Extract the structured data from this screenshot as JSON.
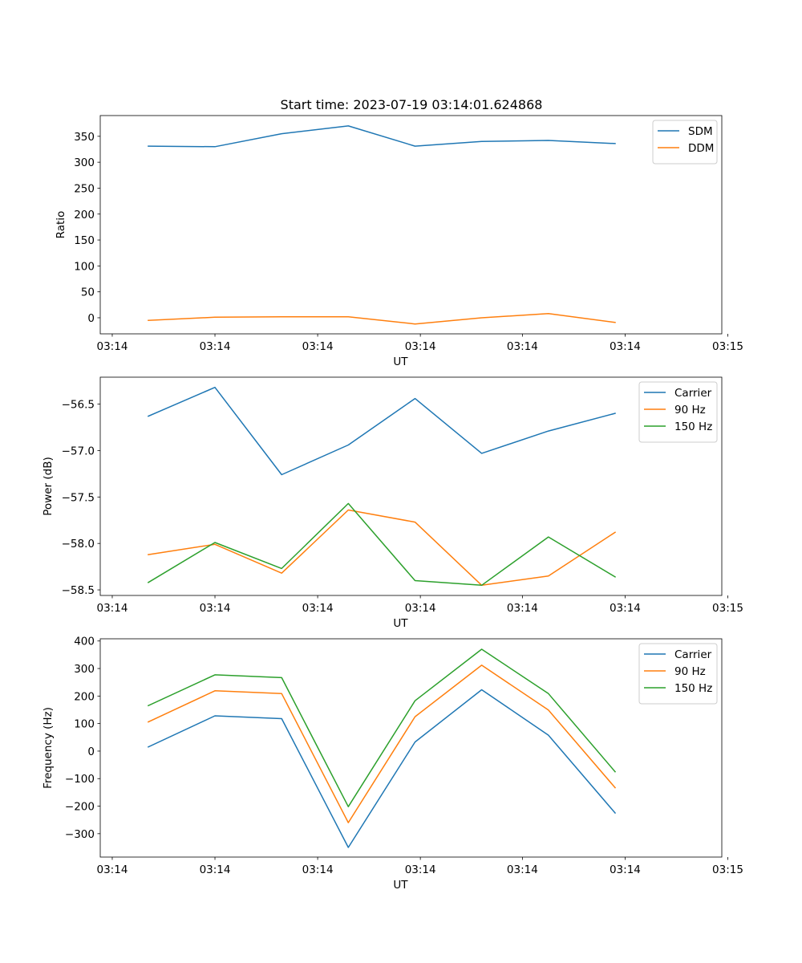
{
  "figure_title": "Start time: 2023-07-19 03:14:01.624868",
  "chart_data": [
    {
      "type": "line",
      "ylabel": "Ratio",
      "xlabel": "UT",
      "x": [
        1,
        2,
        3,
        4,
        5,
        6,
        7,
        8
      ],
      "xlim": [
        0.28,
        9.6
      ],
      "x_ticks": [
        0.46,
        2.0,
        3.54,
        5.08,
        6.61,
        8.15,
        9.69
      ],
      "x_tick_labels": [
        "03:14",
        "03:14",
        "03:14",
        "03:14",
        "03:14",
        "03:14",
        "03:15"
      ],
      "ylim": [
        -31,
        390
      ],
      "y_ticks": [
        0,
        50,
        100,
        150,
        200,
        250,
        300,
        350
      ],
      "y_tick_labels": [
        "0",
        "50",
        "100",
        "150",
        "200",
        "250",
        "300",
        "350"
      ],
      "legend_position": "top-right",
      "series": [
        {
          "name": "SDM",
          "color": "#1f77b4",
          "values": [
            331,
            330,
            355,
            370,
            331,
            340,
            342,
            336
          ]
        },
        {
          "name": "DDM",
          "color": "#ff7f0e",
          "values": [
            -5,
            1,
            2,
            2,
            -12,
            0,
            8,
            -9
          ]
        }
      ]
    },
    {
      "type": "line",
      "ylabel": "Power (dB)",
      "xlabel": "UT",
      "x": [
        1,
        2,
        3,
        4,
        5,
        6,
        7,
        8
      ],
      "xlim": [
        0.28,
        9.6
      ],
      "x_ticks": [
        0.46,
        2.0,
        3.54,
        5.08,
        6.61,
        8.15,
        9.69
      ],
      "x_tick_labels": [
        "03:14",
        "03:14",
        "03:14",
        "03:14",
        "03:14",
        "03:14",
        "03:15"
      ],
      "ylim": [
        -58.56,
        -56.21
      ],
      "y_ticks": [
        -56.5,
        -57.0,
        -57.5,
        -58.0,
        -58.5
      ],
      "y_tick_labels": [
        "−56.5",
        "−57.0",
        "−57.5",
        "−58.0",
        "−58.5"
      ],
      "legend_position": "top-right",
      "series": [
        {
          "name": "Carrier",
          "color": "#1f77b4",
          "values": [
            -56.63,
            -56.32,
            -57.26,
            -56.94,
            -56.44,
            -57.03,
            -56.79,
            -56.6
          ]
        },
        {
          "name": "90 Hz",
          "color": "#ff7f0e",
          "values": [
            -58.12,
            -58.01,
            -58.32,
            -57.64,
            -57.77,
            -58.45,
            -58.35,
            -57.88
          ]
        },
        {
          "name": "150 Hz",
          "color": "#2ca02c",
          "values": [
            -58.42,
            -57.99,
            -58.27,
            -57.57,
            -58.4,
            -58.45,
            -57.93,
            -58.36
          ]
        }
      ]
    },
    {
      "type": "line",
      "ylabel": "Frequency (Hz)",
      "xlabel": "UT",
      "x": [
        1,
        2,
        3,
        4,
        5,
        6,
        7,
        8
      ],
      "xlim": [
        0.28,
        9.6
      ],
      "x_ticks": [
        0.46,
        2.0,
        3.54,
        5.08,
        6.61,
        8.15,
        9.69
      ],
      "x_tick_labels": [
        "03:14",
        "03:14",
        "03:14",
        "03:14",
        "03:14",
        "03:14",
        "03:15"
      ],
      "ylim": [
        -385,
        408
      ],
      "y_ticks": [
        400,
        300,
        200,
        100,
        0,
        -100,
        -200,
        -300
      ],
      "y_tick_labels": [
        "400",
        "300",
        "200",
        "100",
        "0",
        "−100",
        "−200",
        "−300"
      ],
      "legend_position": "top-right",
      "series": [
        {
          "name": "Carrier",
          "color": "#1f77b4",
          "values": [
            15,
            128,
            118,
            -350,
            33,
            223,
            58,
            -225
          ]
        },
        {
          "name": "90 Hz",
          "color": "#ff7f0e",
          "values": [
            106,
            219,
            209,
            -260,
            125,
            312,
            149,
            -133
          ]
        },
        {
          "name": "150 Hz",
          "color": "#2ca02c",
          "values": [
            165,
            277,
            267,
            -202,
            183,
            370,
            209,
            -75
          ]
        }
      ]
    }
  ]
}
